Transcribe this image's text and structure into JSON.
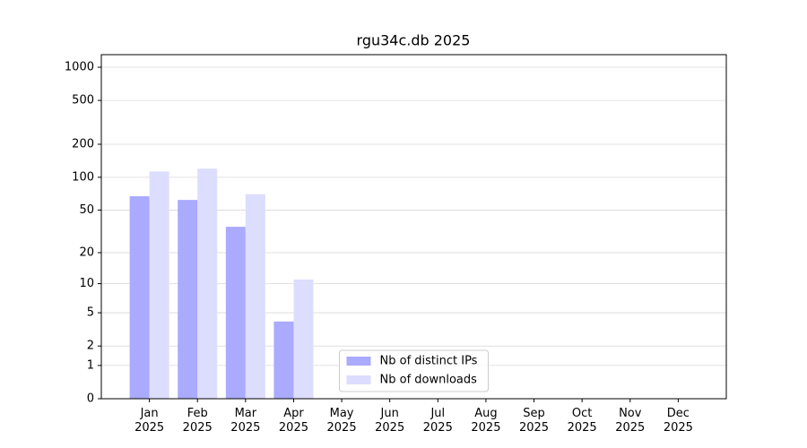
{
  "chart_data": {
    "type": "bar",
    "title": "rgu34c.db 2025",
    "categories": [
      "Jan 2025",
      "Feb 2025",
      "Mar 2025",
      "Apr 2025",
      "May 2025",
      "Jun 2025",
      "Jul 2025",
      "Aug 2025",
      "Sep 2025",
      "Oct 2025",
      "Nov 2025",
      "Dec 2025"
    ],
    "series": [
      {
        "name": "Nb of distinct IPs",
        "color": "#aaaaff",
        "values": [
          67,
          62,
          35,
          4,
          null,
          null,
          null,
          null,
          null,
          null,
          null,
          null
        ]
      },
      {
        "name": "Nb of downloads",
        "color": "#ddddff",
        "values": [
          113,
          120,
          70,
          11,
          null,
          null,
          null,
          null,
          null,
          null,
          null,
          null
        ]
      }
    ],
    "yscale": "log1p",
    "ylim": [
      0,
      1300
    ],
    "yticks": [
      0,
      1,
      2,
      5,
      10,
      20,
      50,
      100,
      200,
      500,
      1000
    ],
    "grid": true,
    "legend": "lower center"
  }
}
